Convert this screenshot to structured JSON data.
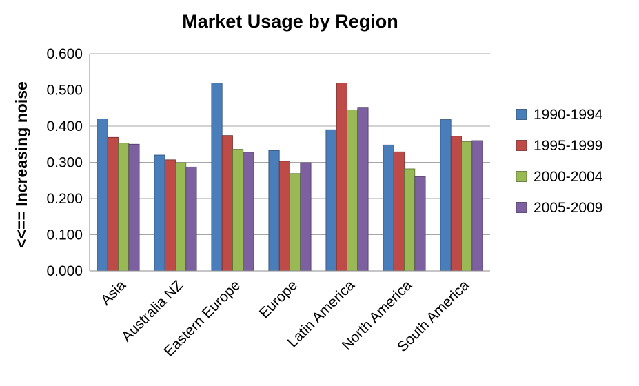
{
  "chart_data": {
    "type": "bar",
    "title": "Market Usage by Region",
    "xlabel": "",
    "ylabel": "<<== Increasing noise",
    "ylim": [
      0,
      0.6
    ],
    "yticks": [
      "0.000",
      "0.100",
      "0.200",
      "0.300",
      "0.400",
      "0.500",
      "0.600"
    ],
    "grid": true,
    "legend_position": "right",
    "categories": [
      "Asia",
      "Australia NZ",
      "Eastern Europe",
      "Europe",
      "Latin America",
      "North America",
      "South America"
    ],
    "series": [
      {
        "name": "1990-1994",
        "color": "#4a7ebb",
        "values": [
          0.42,
          0.32,
          0.519,
          0.333,
          0.39,
          0.348,
          0.418
        ]
      },
      {
        "name": "1995-1999",
        "color": "#be4b48",
        "values": [
          0.369,
          0.307,
          0.374,
          0.303,
          0.519,
          0.329,
          0.372
        ]
      },
      {
        "name": "2000-2004",
        "color": "#98b954",
        "values": [
          0.353,
          0.299,
          0.336,
          0.269,
          0.445,
          0.282,
          0.357
        ]
      },
      {
        "name": "2005-2009",
        "color": "#7d60a0",
        "values": [
          0.35,
          0.287,
          0.328,
          0.299,
          0.452,
          0.26,
          0.36
        ]
      }
    ]
  }
}
